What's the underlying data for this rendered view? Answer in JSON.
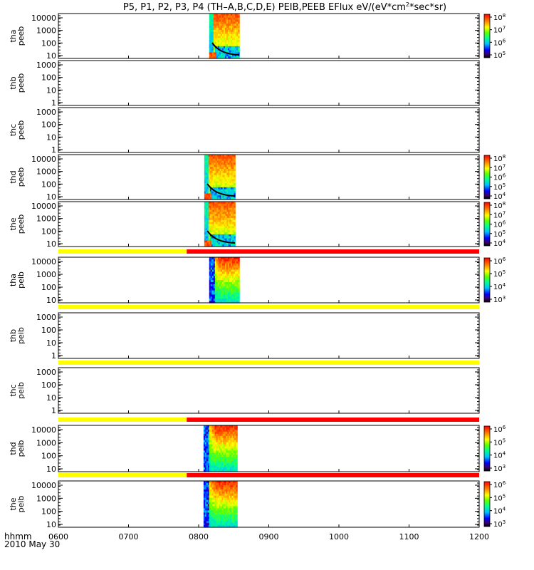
{
  "chart_data": {
    "type": "heatmap",
    "title": {
      "main": "P5, P1, P2, P3, P4 (TH–A,B,C,D,E) PEIB,PEEB EFlux eV/(eV*cm",
      "sup": "2",
      "tail": "*sec*sr)"
    },
    "x_axis": {
      "label_top": "hhmm",
      "label_bottom": "2010 May 30",
      "range": [
        "06:00",
        "12:00"
      ],
      "ticks": [
        {
          "label": "0600",
          "hour": 6
        },
        {
          "label": "0700",
          "hour": 7
        },
        {
          "label": "0800",
          "hour": 8
        },
        {
          "label": "0900",
          "hour": 9
        },
        {
          "label": "1000",
          "hour": 10
        },
        {
          "label": "1100",
          "hour": 11
        },
        {
          "label": "1200",
          "hour": 12
        }
      ]
    },
    "panels": [
      {
        "ylabel": [
          "tha",
          "peeb"
        ],
        "yticks": [
          "10000",
          "1000",
          "100",
          "10"
        ],
        "ylog": true,
        "has_data": true,
        "data_start": 8.15,
        "data_end": 8.58,
        "colorbar": {
          "ticks": [
            "8",
            "7",
            "6",
            "5"
          ]
        },
        "status_bar": null
      },
      {
        "ylabel": [
          "thb",
          "peeb"
        ],
        "yticks": [
          "1000",
          "100",
          "10",
          "1"
        ],
        "ylog": true,
        "has_data": false,
        "colorbar": null,
        "status_bar": null
      },
      {
        "ylabel": [
          "thc",
          "peeb"
        ],
        "yticks": [
          "1000",
          "100",
          "10",
          "1"
        ],
        "ylog": true,
        "has_data": false,
        "colorbar": null,
        "status_bar": null
      },
      {
        "ylabel": [
          "thd",
          "peeb"
        ],
        "yticks": [
          "10000",
          "1000",
          "100",
          "10"
        ],
        "ylog": true,
        "has_data": true,
        "data_start": 8.08,
        "data_end": 8.52,
        "colorbar": {
          "ticks": [
            "8",
            "7",
            "6",
            "5",
            "4"
          ]
        },
        "status_bar": null
      },
      {
        "ylabel": [
          "the",
          "peeb"
        ],
        "yticks": [
          "10000",
          "1000",
          "100",
          "10"
        ],
        "ylog": true,
        "has_data": true,
        "data_start": 8.08,
        "data_end": 8.52,
        "colorbar": {
          "ticks": [
            "8",
            "7",
            "6",
            "5",
            "4"
          ]
        },
        "status_bar": null
      },
      {
        "ylabel": [
          "tha",
          "peib"
        ],
        "yticks": [
          "10000",
          "1000",
          "100",
          "10"
        ],
        "ylog": true,
        "has_data": true,
        "data_start": 8.15,
        "data_end": 8.58,
        "colorbar": {
          "ticks": [
            "6",
            "5",
            "4",
            "3"
          ]
        },
        "status_bar": {
          "split_hour": 7.83
        }
      },
      {
        "ylabel": [
          "thb",
          "peib"
        ],
        "yticks": [
          "1000",
          "100",
          "10",
          "1"
        ],
        "ylog": true,
        "has_data": false,
        "colorbar": null,
        "status_bar": {
          "split_hour": 12
        }
      },
      {
        "ylabel": [
          "thc",
          "peib"
        ],
        "yticks": [
          "1000",
          "100",
          "10",
          "1"
        ],
        "ylog": true,
        "has_data": false,
        "colorbar": null,
        "status_bar": {
          "split_hour": 12
        }
      },
      {
        "ylabel": [
          "thd",
          "peib"
        ],
        "yticks": [
          "10000",
          "1000",
          "100",
          "10"
        ],
        "ylog": true,
        "has_data": true,
        "data_start": 8.07,
        "data_end": 8.55,
        "colorbar": {
          "ticks": [
            "6",
            "5",
            "4",
            "3"
          ]
        },
        "status_bar": {
          "split_hour": 7.83
        }
      },
      {
        "ylabel": [
          "the",
          "peib"
        ],
        "yticks": [
          "10000",
          "1000",
          "100",
          "10"
        ],
        "ylog": true,
        "has_data": true,
        "data_start": 8.07,
        "data_end": 8.55,
        "colorbar": {
          "ticks": [
            "6",
            "5",
            "4",
            "3"
          ]
        },
        "status_bar": {
          "split_hour": 7.83
        }
      }
    ],
    "colors": {
      "status_good": "#ffff00",
      "status_bad": "#ff0000",
      "axis": "#000000"
    }
  }
}
